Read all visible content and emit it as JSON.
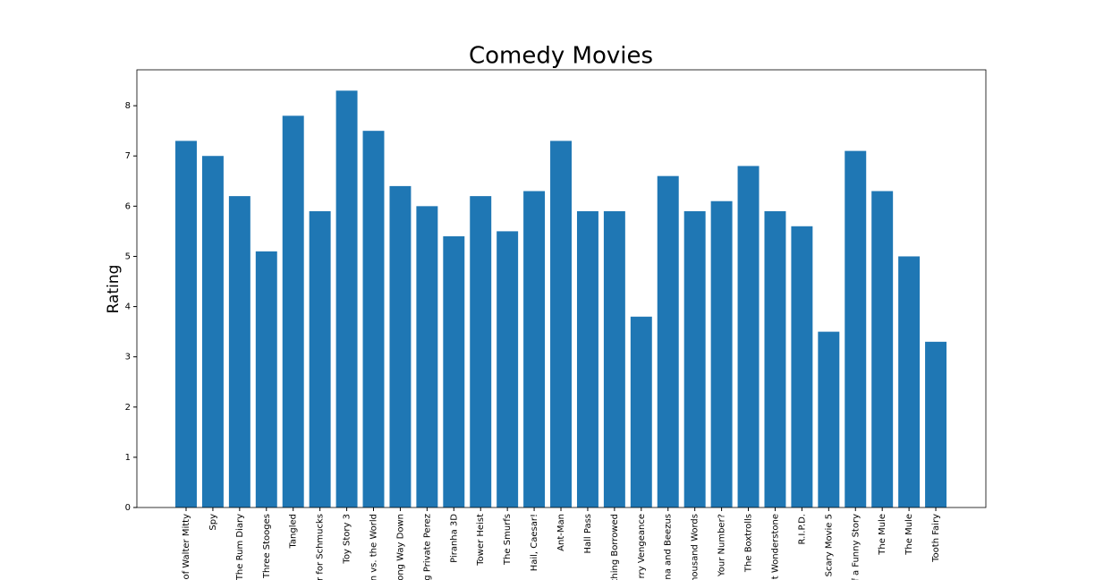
{
  "chart_data": {
    "type": "bar",
    "title": "Comedy Movies",
    "y_label": "Rating",
    "categories": [
      "of Walter Mitty",
      "Spy",
      "The Rum Diary",
      "Three Stooges",
      "Tangled",
      "r for Schmucks",
      "Toy Story 3",
      "n vs. the World",
      "ong Way Down",
      "g Private Perez",
      "Piranha 3D",
      "Tower Heist",
      "The Smurfs",
      "Hail, Caesar!",
      "Ant-Man",
      "Hall Pass",
      "thing Borrowed",
      "rry Vengeance",
      "na and Beezus",
      "housand Words",
      "Your Number?",
      "The Boxtrolls",
      "t Wonderstone",
      "R.I.P.D.",
      "Scary Movie 5",
      "f a Funny Story",
      "The Mule",
      "The Mule",
      "Tooth Fairy"
    ],
    "values": [
      7.3,
      7.0,
      6.2,
      5.1,
      7.8,
      5.9,
      8.3,
      7.5,
      6.4,
      6.0,
      5.4,
      6.2,
      5.5,
      6.3,
      7.3,
      5.9,
      5.9,
      3.8,
      6.6,
      5.9,
      6.1,
      6.8,
      5.9,
      5.6,
      3.5,
      7.1,
      6.3,
      5.0,
      3.3
    ],
    "color": "#1f77b4",
    "ylim": [
      0,
      8.715
    ],
    "yticks": [
      0,
      1,
      2,
      3,
      4,
      5,
      6,
      7,
      8
    ],
    "grid": false
  }
}
